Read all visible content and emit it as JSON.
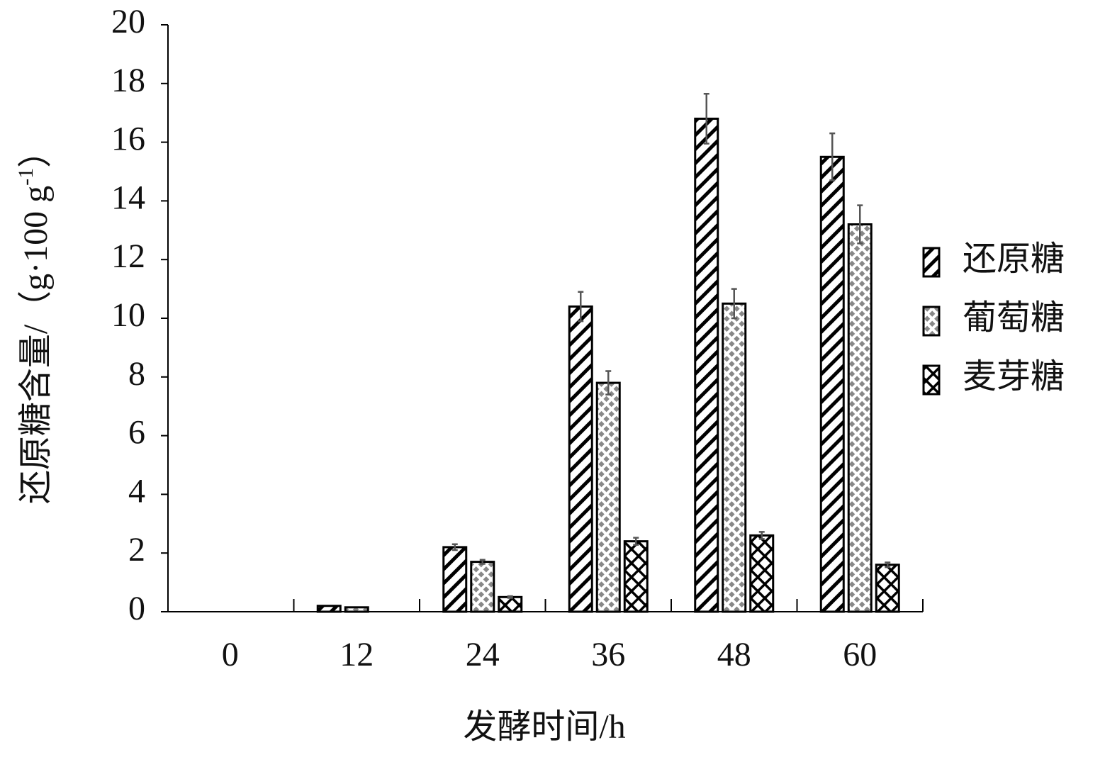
{
  "chart_data": {
    "type": "bar",
    "x_label": "发酵时间/h",
    "y_label": "还原糖含量/（g·100 g",
    "y_label_sup": "-1",
    "y_label_end": "）",
    "categories": [
      "0",
      "12",
      "24",
      "36",
      "48",
      "60"
    ],
    "series": [
      {
        "name": "还原糖",
        "color": "#000000",
        "pattern": "diagonal",
        "values": [
          0,
          0.2,
          2.2,
          10.4,
          16.8,
          15.5
        ],
        "errors": [
          0,
          0,
          0.1,
          0.5,
          0.85,
          0.8
        ]
      },
      {
        "name": "葡萄糖",
        "color": "#888888",
        "pattern": "checker",
        "values": [
          0,
          0.15,
          1.7,
          7.8,
          10.5,
          13.2
        ],
        "errors": [
          0,
          0,
          0.07,
          0.4,
          0.5,
          0.65
        ]
      },
      {
        "name": "麦芽糖",
        "color": "#000000",
        "pattern": "cross",
        "values": [
          0,
          0,
          0.5,
          2.4,
          2.6,
          1.6
        ],
        "errors": [
          0,
          0,
          0.03,
          0.12,
          0.12,
          0.08
        ]
      }
    ],
    "ylim": [
      0,
      20
    ],
    "yticks": [
      0,
      2,
      4,
      6,
      8,
      10,
      12,
      14,
      16,
      18,
      20
    ],
    "grid": false,
    "legend": "right"
  }
}
